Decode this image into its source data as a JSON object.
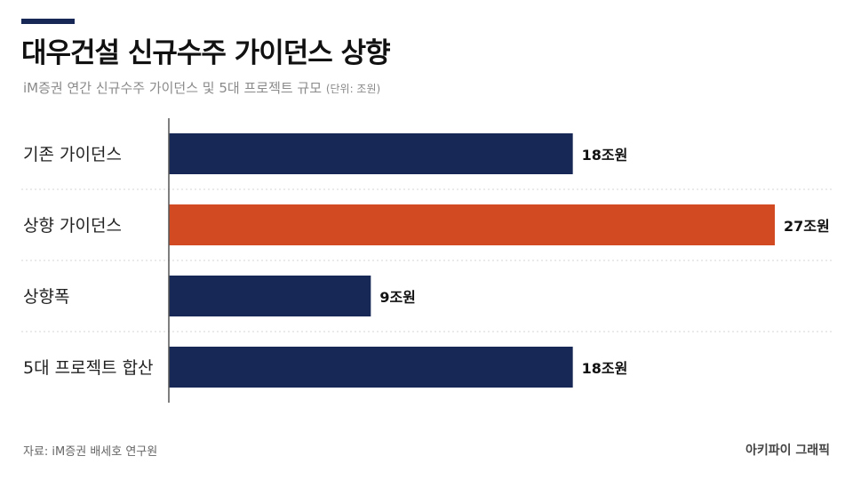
{
  "header": {
    "title": "대우건설 신규수주 가이던스 상향",
    "subtitle": "iM증권 연간 신규수주 가이던스 및 5대 프로젝트 규모",
    "unit_note": "(단위: 조원)"
  },
  "footer": {
    "source": "자료: iM증권 배세호 연구원",
    "brand": "아키파이 그래픽"
  },
  "colors": {
    "accent_rule": "#172856",
    "bar_primary": "#172856",
    "bar_highlight": "#d24a22",
    "grid": "#d4d4d4",
    "axis": "#555555"
  },
  "chart_data": {
    "type": "bar",
    "orientation": "horizontal",
    "categories": [
      "기존 가이던스",
      "상향 가이던스",
      "상향폭",
      "5대 프로젝트 합산"
    ],
    "values": [
      18,
      27,
      9,
      18
    ],
    "data_labels": [
      "18조원",
      "27조원",
      "9조원",
      "18조원"
    ],
    "highlight_index": 1,
    "xlim": [
      0,
      27
    ],
    "grid": false,
    "row_separators": "dotted"
  }
}
